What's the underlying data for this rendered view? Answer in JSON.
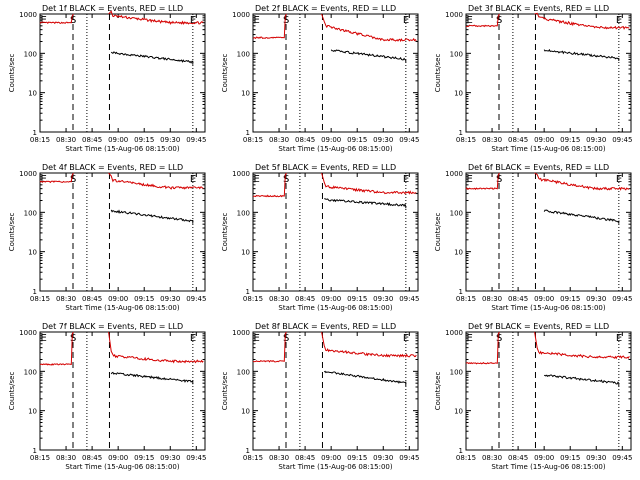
{
  "colors": {
    "events": "#000000",
    "lld": "#d40000",
    "axis": "#000000",
    "background": "#ffffff"
  },
  "shared": {
    "xlabel": "Start Time (15-Aug-06 08:15:00)",
    "ylabel": "Counts/sec",
    "xticks": [
      "08:15",
      "08:30",
      "08:45",
      "09:00",
      "09:15",
      "09:30",
      "09:45"
    ],
    "ytick_labels": [
      "1",
      "10",
      "100",
      "1000"
    ],
    "ylim": [
      1,
      1000
    ],
    "xlim_minutes": [
      0,
      95
    ],
    "markers": [
      {
        "label": "E",
        "at_min": 2,
        "style": "none"
      },
      {
        "label": "S",
        "at_min": 19,
        "style": "dashed"
      },
      {
        "label": "",
        "at_min": 27,
        "style": "dotted"
      },
      {
        "label": "",
        "at_min": 40,
        "style": "dashed"
      },
      {
        "label": "E",
        "at_min": 88,
        "style": "dotted"
      }
    ]
  },
  "chart_data": [
    {
      "type": "line",
      "title": "Det 1f BLACK = Events, RED = LLD",
      "events": {
        "start": 105,
        "end": 60,
        "from_min": 41,
        "to_min": 88
      },
      "lld": {
        "pre": 600,
        "spike": 1000,
        "post_start": 900,
        "post_end": 600
      }
    },
    {
      "type": "line",
      "title": "Det 2f BLACK = Events, RED = LLD",
      "events": {
        "start": 120,
        "end": 70,
        "from_min": 45,
        "to_min": 88
      },
      "lld": {
        "pre": 250,
        "spike": 1000,
        "post_start": 500,
        "post_end": 220
      }
    },
    {
      "type": "line",
      "title": "Det 3f BLACK = Events, RED = LLD",
      "events": {
        "start": 120,
        "end": 75,
        "from_min": 45,
        "to_min": 88
      },
      "lld": {
        "pre": 500,
        "spike": 1000,
        "post_start": 800,
        "post_end": 450
      }
    },
    {
      "type": "line",
      "title": "Det 4f BLACK = Events, RED = LLD",
      "events": {
        "start": 110,
        "end": 60,
        "from_min": 41,
        "to_min": 88
      },
      "lld": {
        "pre": 600,
        "spike": 1000,
        "post_start": 650,
        "post_end": 420
      }
    },
    {
      "type": "line",
      "title": "Det 5f BLACK = Events, RED = LLD",
      "events": {
        "start": 210,
        "end": 150,
        "from_min": 41,
        "to_min": 88
      },
      "lld": {
        "pre": 260,
        "spike": 1000,
        "post_start": 450,
        "post_end": 320
      }
    },
    {
      "type": "line",
      "title": "Det 6f BLACK = Events, RED = LLD",
      "events": {
        "start": 110,
        "end": 60,
        "from_min": 45,
        "to_min": 88
      },
      "lld": {
        "pre": 400,
        "spike": 1000,
        "post_start": 700,
        "post_end": 400
      }
    },
    {
      "type": "line",
      "title": "Det 7f BLACK = Events, RED = LLD",
      "events": {
        "start": 90,
        "end": 55,
        "from_min": 41,
        "to_min": 88
      },
      "lld": {
        "pre": 150,
        "spike": 1000,
        "post_start": 250,
        "post_end": 180
      }
    },
    {
      "type": "line",
      "title": "Det 8f BLACK = Events, RED = LLD",
      "events": {
        "start": 100,
        "end": 50,
        "from_min": 41,
        "to_min": 88
      },
      "lld": {
        "pre": 180,
        "spike": 1000,
        "post_start": 350,
        "post_end": 250
      }
    },
    {
      "type": "line",
      "title": "Det 9f BLACK = Events, RED = LLD",
      "events": {
        "start": 80,
        "end": 50,
        "from_min": 45,
        "to_min": 88
      },
      "lld": {
        "pre": 160,
        "spike": 1000,
        "post_start": 300,
        "post_end": 230
      }
    }
  ]
}
